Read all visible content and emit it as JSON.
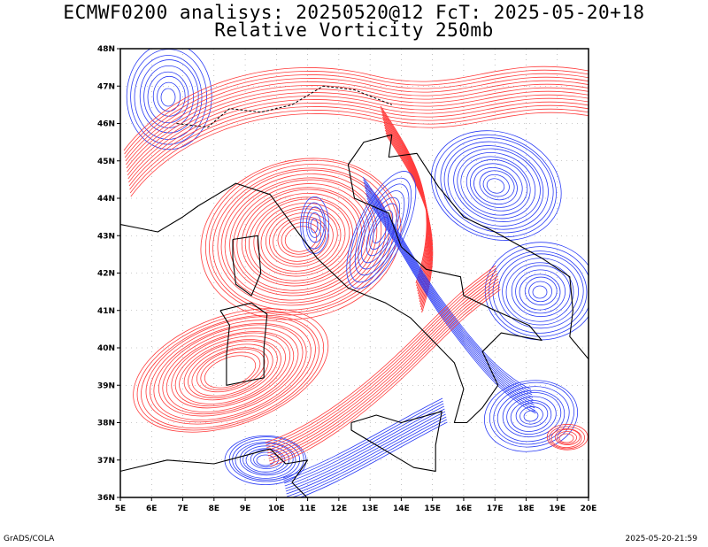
{
  "title": {
    "line1": "ECMWF0200 analisys: 20250520@12 FcT: 2025-05-20+18",
    "line2": "Relative Vorticity 250mb"
  },
  "map": {
    "lon_range": [
      5,
      20
    ],
    "lat_range": [
      36,
      48
    ],
    "lon_labels": [
      "5E",
      "6E",
      "7E",
      "8E",
      "9E",
      "10E",
      "11E",
      "12E",
      "13E",
      "14E",
      "15E",
      "16E",
      "17E",
      "18E",
      "19E",
      "20E"
    ],
    "lat_labels": [
      "36N",
      "37N",
      "38N",
      "39N",
      "40N",
      "41N",
      "42N",
      "43N",
      "44N",
      "45N",
      "46N",
      "47N",
      "48N"
    ],
    "colors": {
      "positive_contour": "#ff3b3b",
      "negative_contour": "#2a3cf5",
      "coastline": "#000000",
      "grid": "#999999"
    }
  },
  "footer": {
    "left": "GrADS/COLA",
    "right": "2025-05-20-21:59"
  }
}
